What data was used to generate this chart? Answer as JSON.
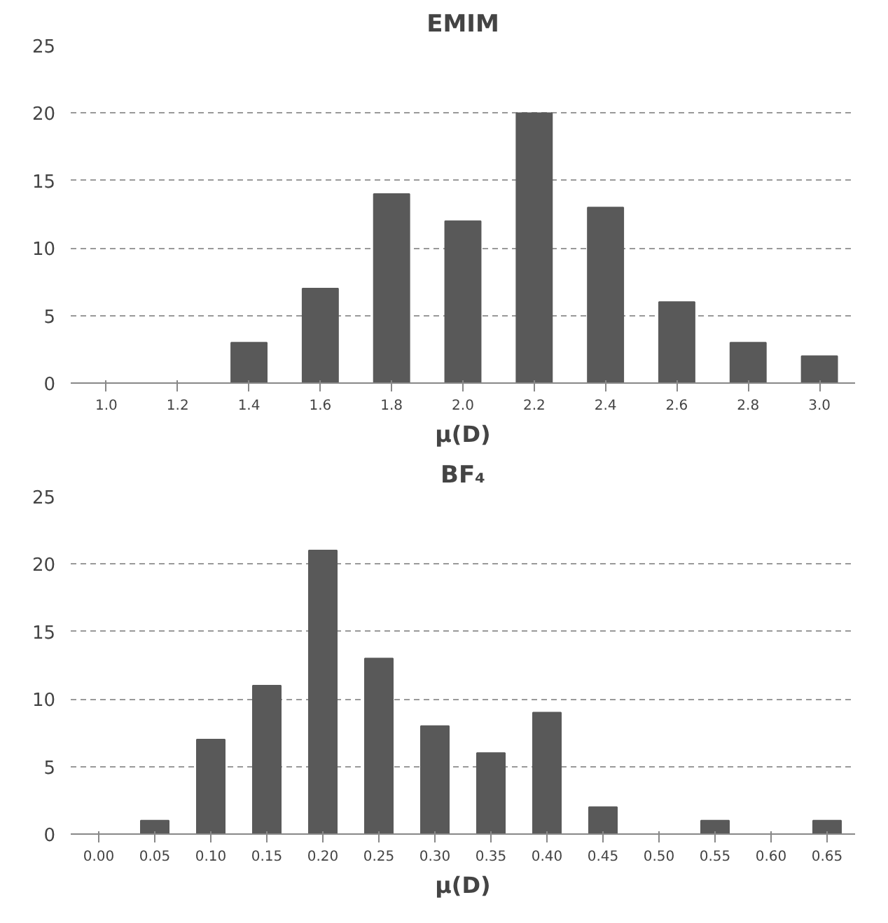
{
  "chart_data": [
    {
      "type": "bar",
      "title": "EMIM",
      "xlabel": "μ(D)",
      "categories": [
        "1.0",
        "1.2",
        "1.4",
        "1.6",
        "1.8",
        "2.0",
        "2.2",
        "2.4",
        "2.6",
        "2.8",
        "3.0"
      ],
      "values": [
        0,
        0,
        3,
        7,
        14,
        12,
        20,
        13,
        6,
        3,
        2
      ],
      "color": "#595959",
      "ylim": [
        0,
        25
      ],
      "yticks": [
        0,
        5,
        10,
        15,
        20,
        25
      ],
      "grid": "y"
    },
    {
      "type": "bar",
      "title": "BF₄",
      "xlabel": "μ(D)",
      "categories": [
        "0.00",
        "0.05",
        "0.10",
        "0.15",
        "0.20",
        "0.25",
        "0.30",
        "0.35",
        "0.40",
        "0.45",
        "0.50",
        "0.55",
        "0.60",
        "0.65"
      ],
      "values": [
        0,
        1,
        7,
        11,
        21,
        13,
        8,
        6,
        9,
        2,
        0,
        1,
        0,
        1
      ],
      "color": "#595959",
      "ylim": [
        0,
        25
      ],
      "yticks": [
        0,
        5,
        10,
        15,
        20,
        25
      ],
      "grid": "y"
    }
  ]
}
